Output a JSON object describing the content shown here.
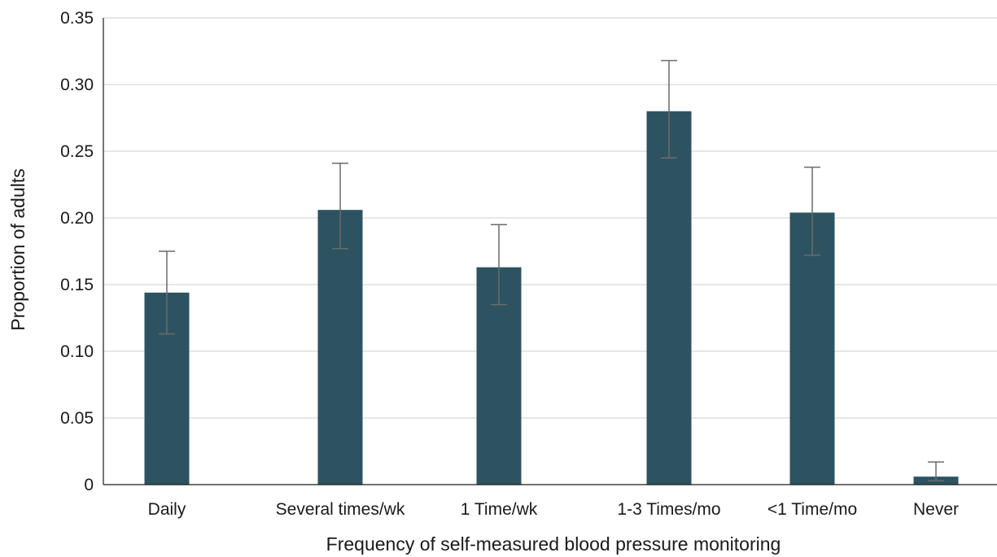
{
  "chart_data": {
    "type": "bar",
    "categories": [
      "Daily",
      "Several times/wk",
      "1 Time/wk",
      "1-3 Times/mo",
      "<1 Time/mo",
      "Never"
    ],
    "values": [
      0.144,
      0.206,
      0.163,
      0.28,
      0.204,
      0.006
    ],
    "error_low": [
      0.113,
      0.177,
      0.135,
      0.245,
      0.172,
      0.003
    ],
    "error_high": [
      0.175,
      0.241,
      0.195,
      0.318,
      0.238,
      0.017
    ],
    "title": "",
    "xlabel": "Frequency of self-measured blood pressure monitoring",
    "ylabel": "Proportion of adults",
    "ylim": [
      0,
      0.35
    ],
    "yticks": [
      "0",
      "0.05",
      "0.10",
      "0.15",
      "0.20",
      "0.25",
      "0.30",
      "0.35"
    ],
    "grid": true,
    "bar_color": "#2d5361",
    "error_color": "#6b6b6b",
    "grid_color": "#cfcfcf"
  }
}
